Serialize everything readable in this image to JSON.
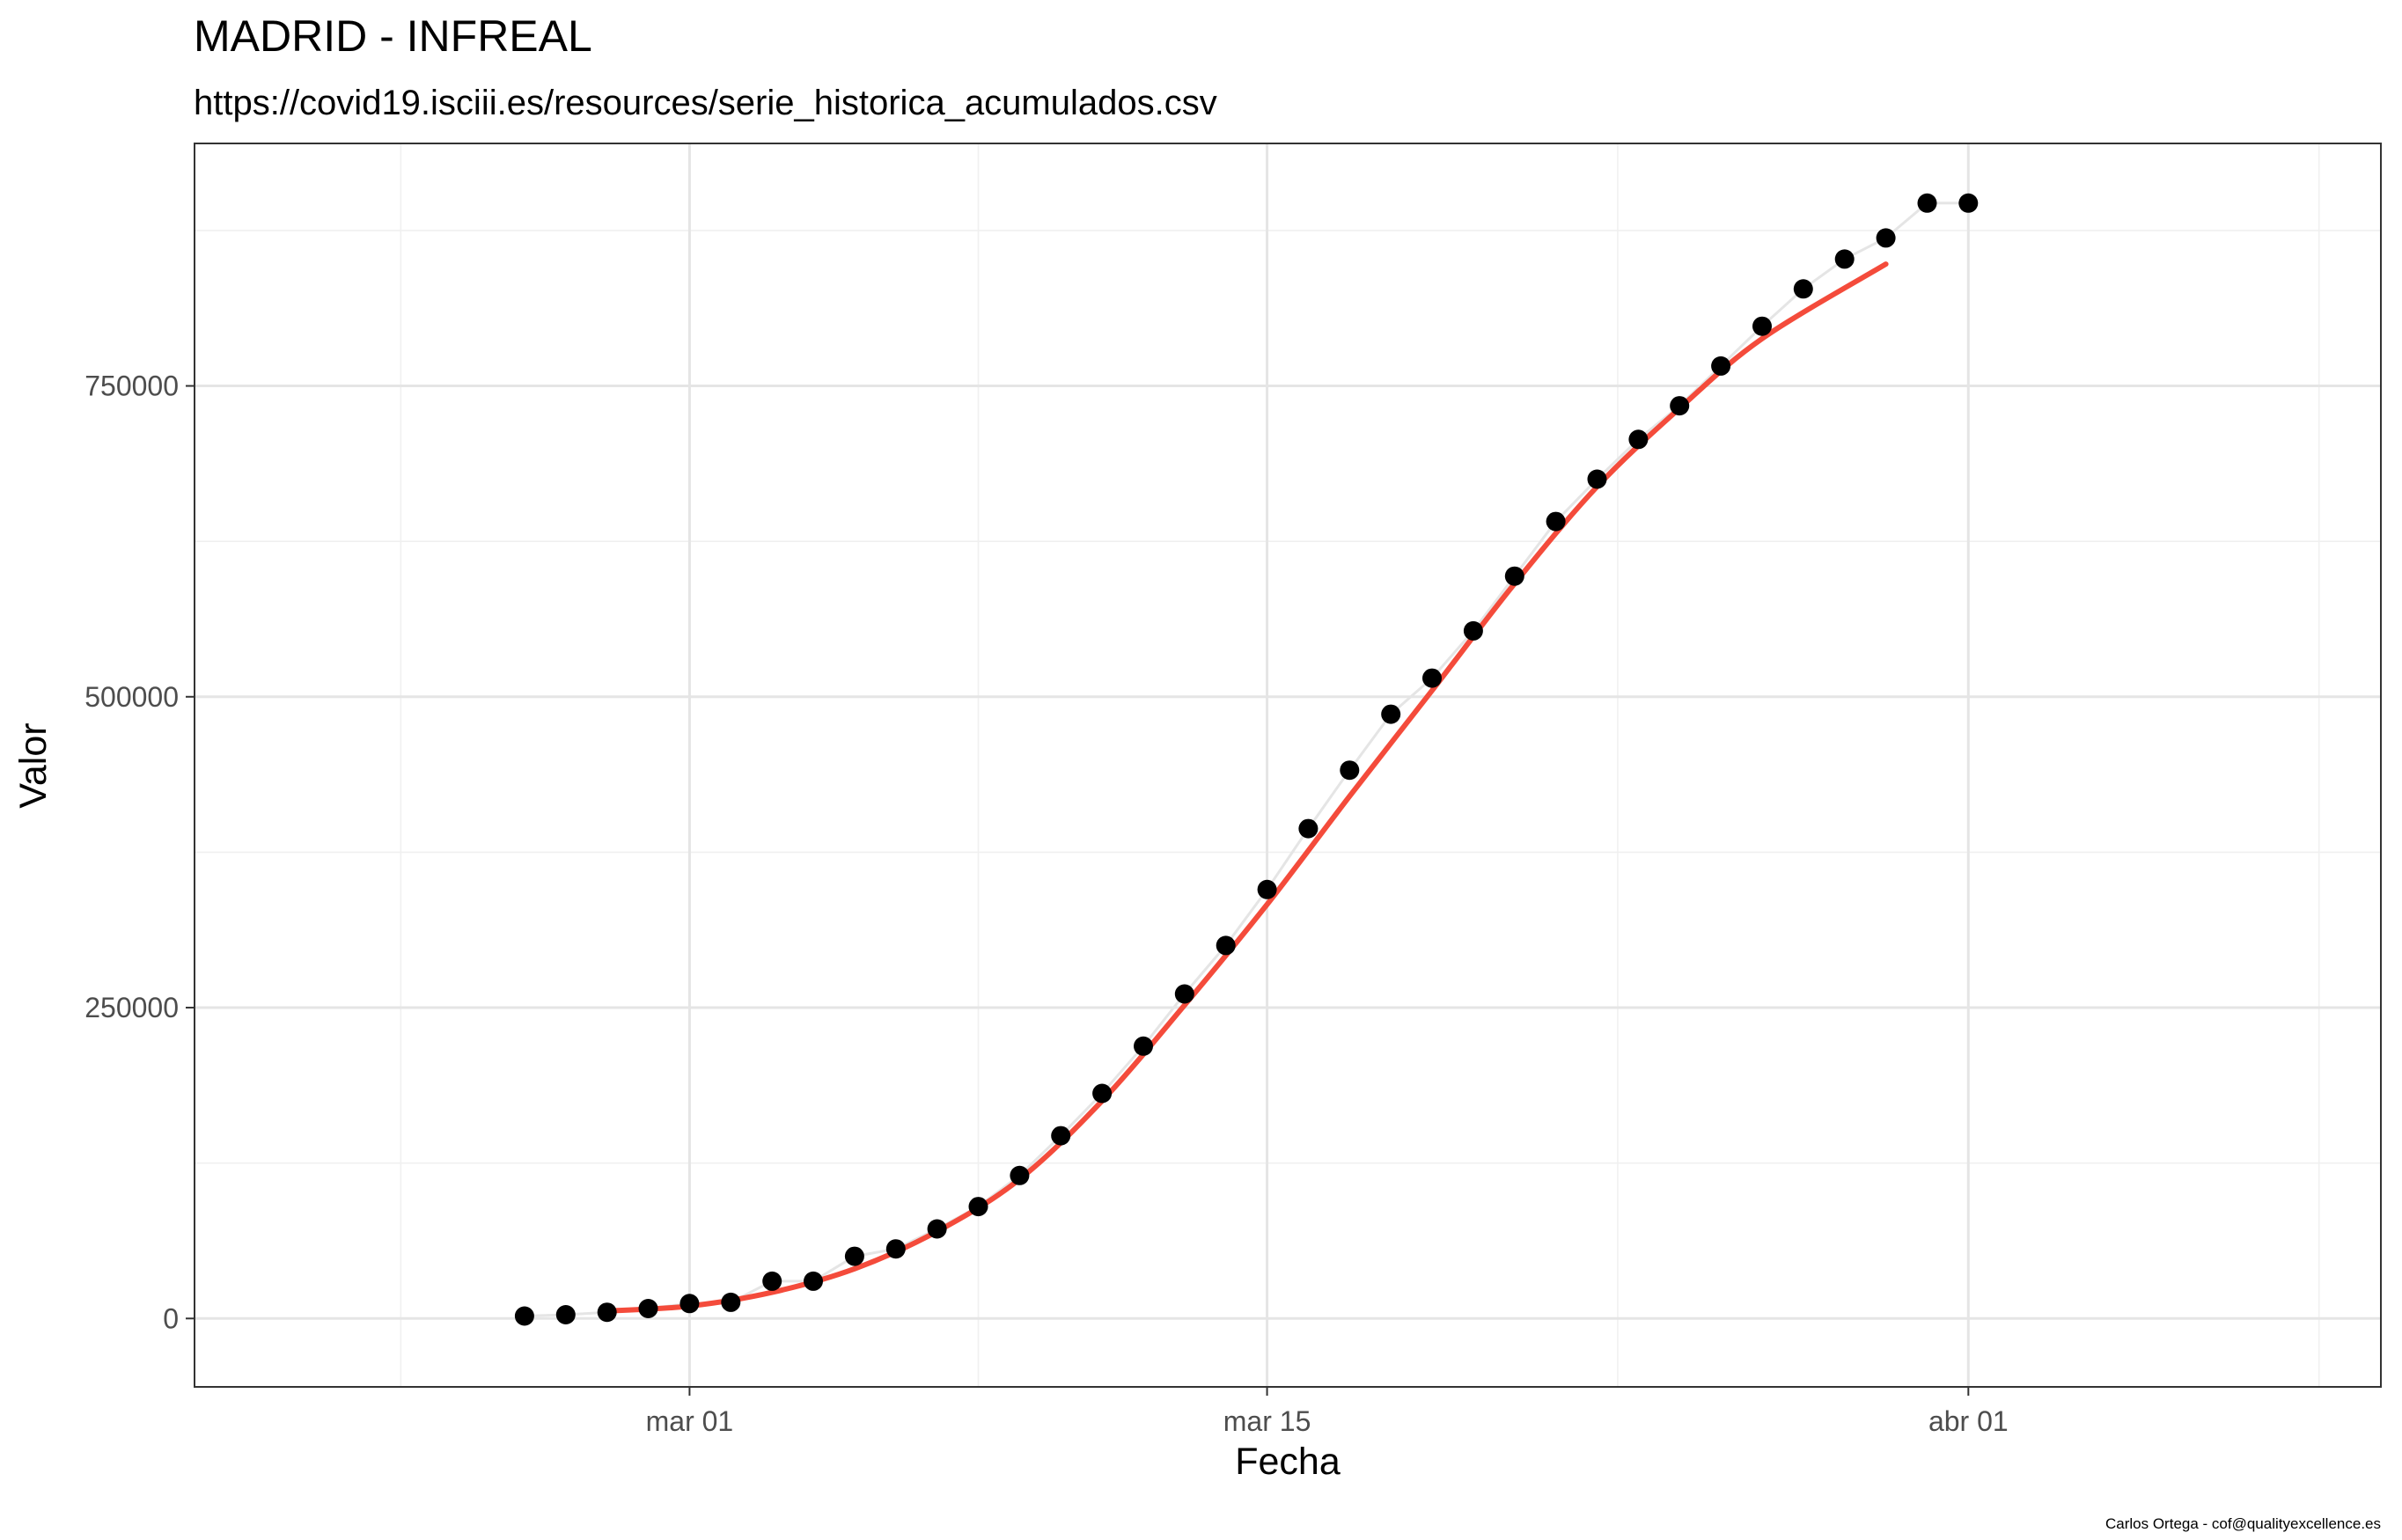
{
  "chart_data": {
    "type": "scatter",
    "title": "MADRID - INFREAL",
    "subtitle": "https://covid19.isciii.es/resources/serie_historica_acumulados.csv",
    "xlabel": "Fecha",
    "ylabel": "Valor",
    "caption": "Carlos Ortega - cof@qualityexcellence.es",
    "x_axis": {
      "type": "date",
      "range": [
        "2020-02-18",
        "2020-04-11"
      ],
      "ticks": [
        {
          "date": "2020-03-01",
          "label": "mar 01"
        },
        {
          "date": "2020-03-15",
          "label": "mar 15"
        },
        {
          "date": "2020-04-01",
          "label": "abr 01"
        }
      ]
    },
    "y_axis": {
      "range": [
        -55000,
        945000
      ],
      "ticks": [
        {
          "value": 0,
          "label": "0"
        },
        {
          "value": 250000,
          "label": "250000"
        },
        {
          "value": 500000,
          "label": "500000"
        },
        {
          "value": 750000,
          "label": "750000"
        }
      ]
    },
    "grid": true,
    "series": [
      {
        "kind": "points",
        "color": "#000000",
        "x": [
          "2020-02-26",
          "2020-02-27",
          "2020-02-28",
          "2020-02-29",
          "2020-03-01",
          "2020-03-02",
          "2020-03-03",
          "2020-03-04",
          "2020-03-05",
          "2020-03-06",
          "2020-03-07",
          "2020-03-08",
          "2020-03-09",
          "2020-03-10",
          "2020-03-11",
          "2020-03-12",
          "2020-03-13",
          "2020-03-14",
          "2020-03-15",
          "2020-03-16",
          "2020-03-17",
          "2020-03-18",
          "2020-03-19",
          "2020-03-20",
          "2020-03-21",
          "2020-03-22",
          "2020-03-23",
          "2020-03-24",
          "2020-03-25",
          "2020-03-26",
          "2020-03-27",
          "2020-03-28",
          "2020-03-29",
          "2020-03-30",
          "2020-03-31",
          "2020-04-01"
        ],
        "y": [
          2000,
          3000,
          5000,
          8000,
          12000,
          13000,
          30000,
          30000,
          50000,
          56000,
          72000,
          90000,
          115000,
          147000,
          181000,
          219000,
          261000,
          300000,
          345000,
          394000,
          441000,
          486000,
          515000,
          553000,
          597000,
          641000,
          675000,
          707000,
          734000,
          766000,
          798000,
          828000,
          852000,
          869000,
          897000,
          897000
        ]
      },
      {
        "kind": "connecting-line",
        "color": "#e5e5e5",
        "x": [
          "2020-02-26",
          "2020-02-27",
          "2020-02-28",
          "2020-02-29",
          "2020-03-01",
          "2020-03-02",
          "2020-03-03",
          "2020-03-04",
          "2020-03-05",
          "2020-03-06",
          "2020-03-07",
          "2020-03-08",
          "2020-03-09",
          "2020-03-10",
          "2020-03-11",
          "2020-03-12",
          "2020-03-13",
          "2020-03-14",
          "2020-03-15",
          "2020-03-16",
          "2020-03-17",
          "2020-03-18",
          "2020-03-19",
          "2020-03-20",
          "2020-03-21",
          "2020-03-22",
          "2020-03-23",
          "2020-03-24",
          "2020-03-25",
          "2020-03-26",
          "2020-03-27",
          "2020-03-28",
          "2020-03-29",
          "2020-03-30",
          "2020-03-31",
          "2020-04-01"
        ],
        "y": [
          2000,
          3000,
          5000,
          8000,
          12000,
          13000,
          30000,
          30000,
          50000,
          56000,
          72000,
          90000,
          115000,
          147000,
          181000,
          219000,
          261000,
          300000,
          345000,
          394000,
          441000,
          486000,
          515000,
          553000,
          597000,
          641000,
          675000,
          707000,
          734000,
          766000,
          798000,
          828000,
          852000,
          869000,
          897000,
          897000
        ]
      },
      {
        "kind": "smooth",
        "color": "#f44b3b",
        "x": [
          "2020-02-28",
          "2020-03-01",
          "2020-03-03",
          "2020-03-05",
          "2020-03-07",
          "2020-03-09",
          "2020-03-11",
          "2020-03-13",
          "2020-03-15",
          "2020-03-17",
          "2020-03-19",
          "2020-03-21",
          "2020-03-23",
          "2020-03-25",
          "2020-03-27",
          "2020-03-30"
        ],
        "y": [
          6000,
          10000,
          21000,
          40000,
          70000,
          112000,
          175000,
          252000,
          333000,
          420000,
          505000,
          591000,
          669000,
          732000,
          788000,
          848000
        ]
      }
    ]
  }
}
